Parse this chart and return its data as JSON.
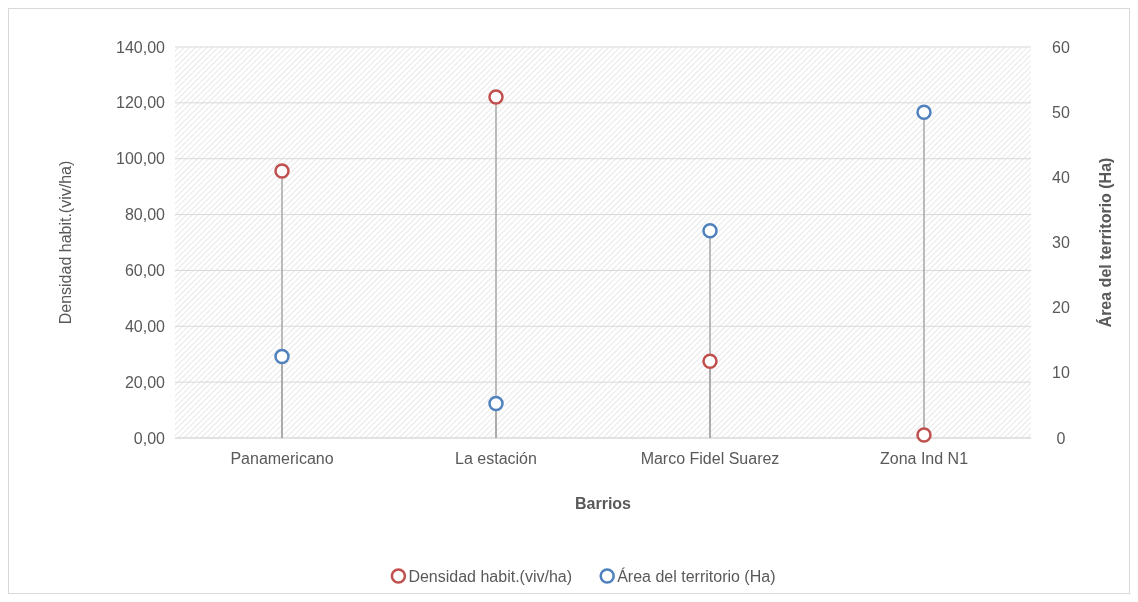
{
  "chart_data": {
    "type": "lollipop",
    "xlabel": "Barrios",
    "ylabel": "Densidad habit.(viv/ha)",
    "y2label": "Área del territorio (Ha)",
    "categories": [
      "Panamericano",
      "La estación",
      "Marco Fidel Suarez",
      "Zona Ind N1"
    ],
    "series": [
      {
        "name": "Densidad habit.(viv/ha)",
        "color": "#c0504d",
        "values": [
          95.6,
          122.1,
          27.5,
          1.1
        ]
      },
      {
        "name": "Área del territorio (Ha)",
        "color": "#4f81bd",
        "axis": "y2",
        "values": [
          12.5,
          5.3,
          31.8,
          50
        ]
      }
    ],
    "ylim": [
      0,
      140
    ],
    "yticks": [
      {
        "value": 0,
        "label": "0,00"
      },
      {
        "value": 20,
        "label": "20,00"
      },
      {
        "value": 40,
        "label": "40,00"
      },
      {
        "value": 60,
        "label": "60,00"
      },
      {
        "value": 80,
        "label": "80,00"
      },
      {
        "value": 100,
        "label": "100,00"
      },
      {
        "value": 120,
        "label": "120,00"
      },
      {
        "value": 140,
        "label": "140,00"
      }
    ],
    "y2lim": [
      0,
      60
    ],
    "y2ticks": [
      0,
      10,
      20,
      30,
      40,
      50,
      60
    ],
    "grid": "y",
    "legend": "bottom",
    "marker": "circle"
  }
}
